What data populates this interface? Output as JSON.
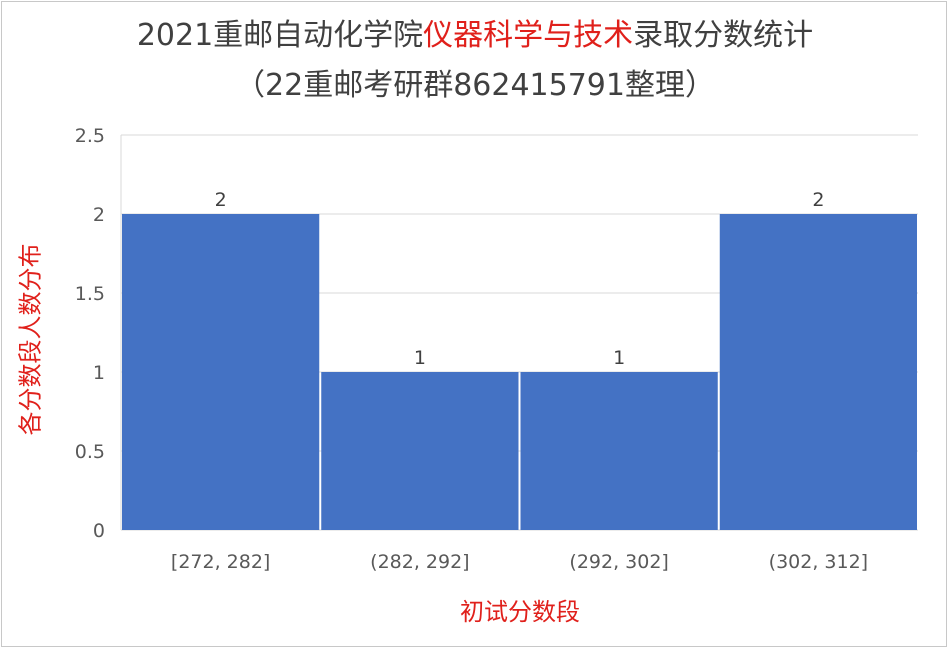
{
  "header": {
    "title_prefix": "2021重邮自动化学院",
    "title_highlight": "仪器科学与技术",
    "title_suffix": "录取分数统计",
    "subtitle": "（22重邮考研群862415791整理）"
  },
  "colors": {
    "bar": "#4472c4",
    "highlight": "#e0201b",
    "grid": "#d9d9d9"
  },
  "chart_data": {
    "type": "bar",
    "title": "2021重邮自动化学院仪器科学与技术录取分数统计",
    "subtitle": "（22重邮考研群862415791整理）",
    "xlabel": "初试分数段",
    "ylabel": "各分数段人数分布",
    "categories": [
      "[272, 282]",
      "(282, 292]",
      "(292, 302]",
      "(302, 312]"
    ],
    "values": [
      2,
      1,
      1,
      2
    ],
    "ylim": [
      0,
      2.5
    ],
    "yticks": [
      "0",
      "0.5",
      "1",
      "1.5",
      "2",
      "2.5"
    ],
    "grid": true,
    "data_labels": true
  }
}
